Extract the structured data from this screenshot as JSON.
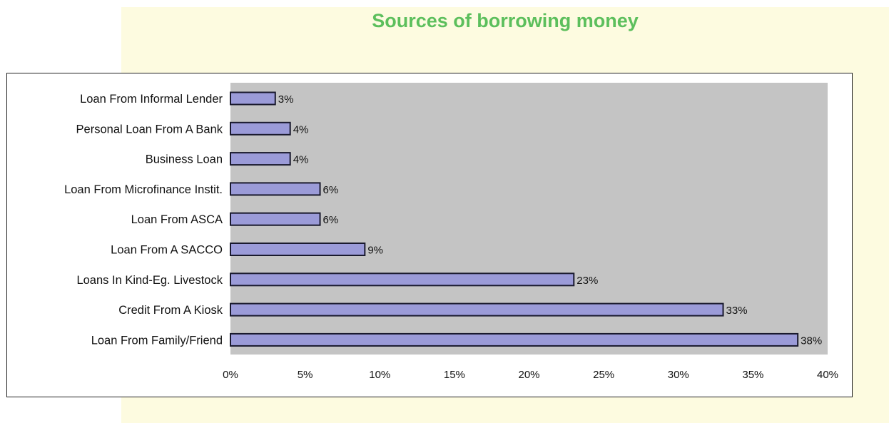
{
  "chart_data": {
    "type": "bar",
    "orientation": "horizontal",
    "title": "Sources of borrowing money",
    "categories": [
      "Loan From Informal Lender",
      "Personal Loan From A Bank",
      "Business Loan",
      "Loan From Microfinance Instit.",
      "Loan From ASCA",
      "Loan From A SACCO",
      "Loans In Kind-Eg. Livestock",
      "Credit From A Kiosk",
      "Loan From Family/Friend"
    ],
    "values": [
      3,
      4,
      4,
      6,
      6,
      9,
      23,
      33,
      38
    ],
    "value_labels": [
      "3%",
      "4%",
      "4%",
      "6%",
      "6%",
      "9%",
      "23%",
      "33%",
      "38%"
    ],
    "xlim": [
      0,
      40
    ],
    "xticks": [
      "0%",
      "5%",
      "10%",
      "15%",
      "20%",
      "25%",
      "30%",
      "35%",
      "40%"
    ],
    "xtick_values": [
      0,
      5,
      10,
      15,
      20,
      25,
      30,
      35,
      40
    ],
    "grid": false,
    "legend": "none",
    "colors": {
      "bar_fill": "#9b9bd8",
      "bar_stroke": "#1a1a2e",
      "plot_bg": "#c4c4c4",
      "title": "#5cbf5c",
      "background": "#fdfbe0"
    }
  }
}
